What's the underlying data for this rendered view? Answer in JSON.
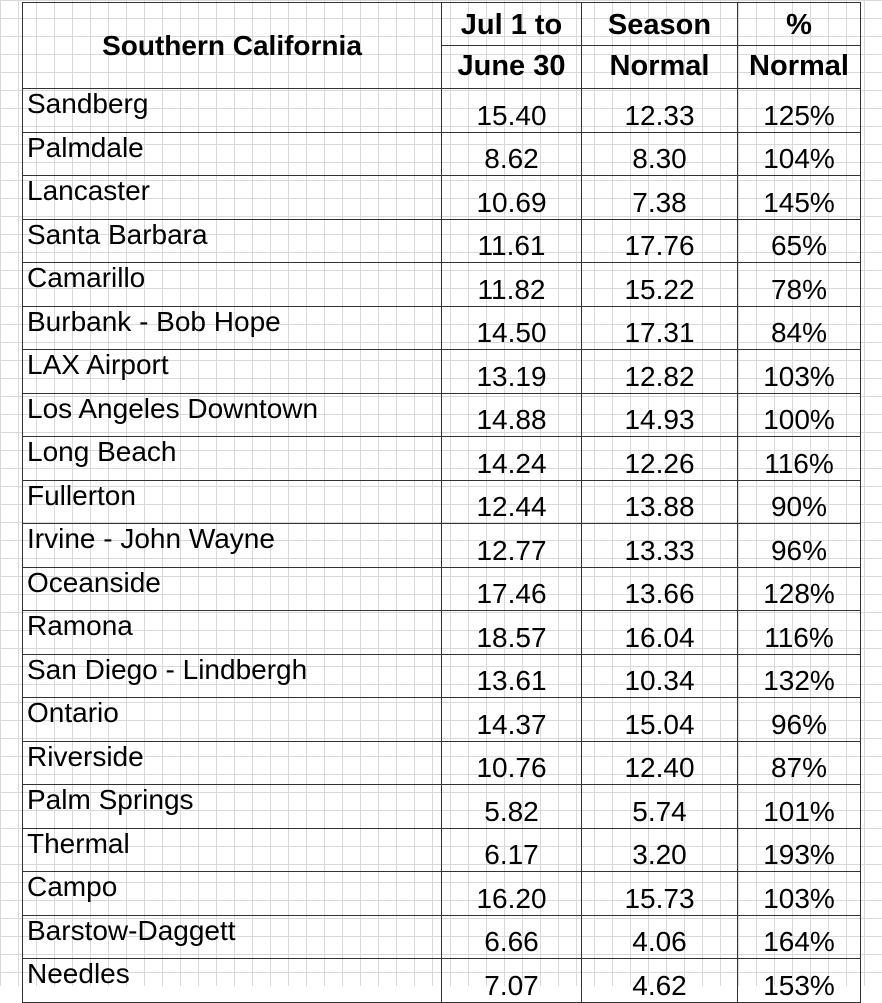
{
  "table": {
    "region_header": "Southern California",
    "col1_line1": "Jul 1 to",
    "col1_line2": "June 30",
    "col2_line1": "Season",
    "col2_line2": "Normal",
    "col3_line1": "%",
    "col3_line2": "Normal",
    "rows": [
      {
        "station": "Sandberg",
        "total": "15.40",
        "normal": "12.33",
        "percent": "125%"
      },
      {
        "station": "Palmdale",
        "total": "8.62",
        "normal": "8.30",
        "percent": "104%"
      },
      {
        "station": "Lancaster",
        "total": "10.69",
        "normal": "7.38",
        "percent": "145%"
      },
      {
        "station": "Santa Barbara",
        "total": "11.61",
        "normal": "17.76",
        "percent": "65%"
      },
      {
        "station": "Camarillo",
        "total": "11.82",
        "normal": "15.22",
        "percent": "78%"
      },
      {
        "station": "Burbank - Bob Hope",
        "total": "14.50",
        "normal": "17.31",
        "percent": "84%"
      },
      {
        "station": "LAX Airport",
        "total": "13.19",
        "normal": "12.82",
        "percent": "103%"
      },
      {
        "station": "Los Angeles Downtown",
        "total": "14.88",
        "normal": "14.93",
        "percent": "100%"
      },
      {
        "station": "Long Beach",
        "total": "14.24",
        "normal": "12.26",
        "percent": "116%"
      },
      {
        "station": "Fullerton",
        "total": "12.44",
        "normal": "13.88",
        "percent": "90%"
      },
      {
        "station": "Irvine - John Wayne",
        "total": "12.77",
        "normal": "13.33",
        "percent": "96%"
      },
      {
        "station": "Oceanside",
        "total": "17.46",
        "normal": "13.66",
        "percent": "128%"
      },
      {
        "station": "Ramona",
        "total": "18.57",
        "normal": "16.04",
        "percent": "116%"
      },
      {
        "station": "San Diego - Lindbergh",
        "total": "13.61",
        "normal": "10.34",
        "percent": "132%"
      },
      {
        "station": "Ontario",
        "total": "14.37",
        "normal": "15.04",
        "percent": "96%"
      },
      {
        "station": "Riverside",
        "total": "10.76",
        "normal": "12.40",
        "percent": "87%"
      },
      {
        "station": "Palm Springs",
        "total": "5.82",
        "normal": "5.74",
        "percent": "101%"
      },
      {
        "station": "Thermal",
        "total": "6.17",
        "normal": "3.20",
        "percent": "193%"
      },
      {
        "station": "Campo",
        "total": "16.20",
        "normal": "15.73",
        "percent": "103%"
      },
      {
        "station": "Barstow-Daggett",
        "total": "6.66",
        "normal": "4.06",
        "percent": "164%"
      },
      {
        "station": "Needles",
        "total": "7.07",
        "normal": "4.62",
        "percent": "153%"
      }
    ]
  }
}
